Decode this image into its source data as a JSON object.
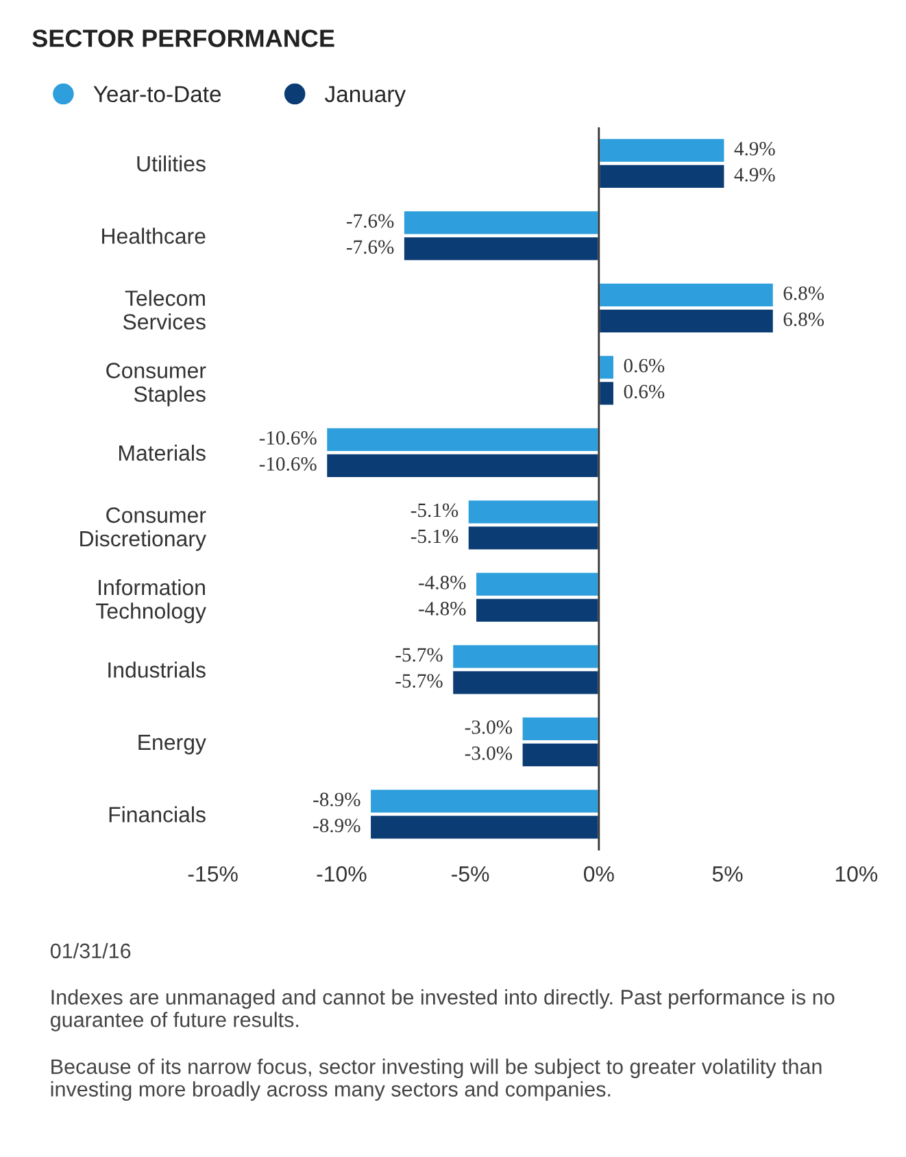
{
  "chart_data": {
    "type": "bar",
    "orientation": "horizontal",
    "title": "SECTOR PERFORMANCE",
    "categories": [
      "Utilities",
      "Healthcare",
      "Telecom\nServices",
      "Consumer\nStaples",
      "Materials",
      "Consumer\nDiscretionary",
      "Information\nTechnology",
      "Industrials",
      "Energy",
      "Financials"
    ],
    "series": [
      {
        "name": "Year-to-Date",
        "color": "#2e9fdc",
        "values": [
          4.9,
          -7.6,
          6.8,
          0.6,
          -10.6,
          -5.1,
          -4.8,
          -5.7,
          -3.0,
          -8.9
        ],
        "value_labels": [
          "4.9%",
          "-7.6%",
          "6.8%",
          "0.6%",
          "-10.6%",
          "-5.1%",
          "-4.8%",
          "-5.7%",
          "-3.0%",
          "-8.9%"
        ]
      },
      {
        "name": "January",
        "color": "#0b3c74",
        "values": [
          4.9,
          -7.6,
          6.8,
          0.6,
          -10.6,
          -5.1,
          -4.8,
          -5.7,
          -3.0,
          -8.9
        ],
        "value_labels": [
          "4.9%",
          "-7.6%",
          "6.8%",
          "0.6%",
          "-10.6%",
          "-5.1%",
          "-4.8%",
          "-5.7%",
          "-3.0%",
          "-8.9%"
        ]
      }
    ],
    "xlim": [
      -15,
      10
    ],
    "xticks": [
      {
        "value": -15,
        "label": "-15%"
      },
      {
        "value": -10,
        "label": "-10%"
      },
      {
        "value": -5,
        "label": "-5%"
      },
      {
        "value": 0,
        "label": "0%"
      },
      {
        "value": 5,
        "label": "5%"
      },
      {
        "value": 10,
        "label": "10%"
      }
    ],
    "legend": "top left",
    "ref_lines": [
      {
        "axis": "x",
        "value": 0,
        "color": "#333333"
      }
    ],
    "annotations": [
      "01/31/16",
      "Indexes are unmanaged and cannot be invested into directly. Past performance is no guarantee of future results.",
      "Because of its narrow focus, sector investing will be subject to greater volatility than investing more broadly across many sectors and companies."
    ]
  }
}
